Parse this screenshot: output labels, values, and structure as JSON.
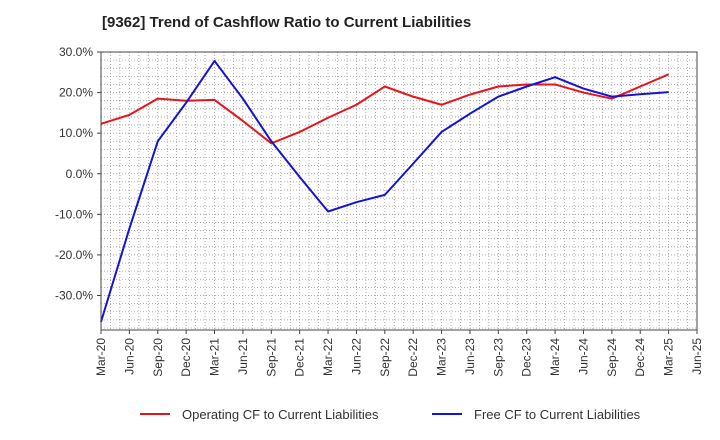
{
  "chart_data": {
    "type": "line",
    "title": "[9362]  Trend of Cashflow Ratio to Current Liabilities",
    "xlabel": "",
    "ylabel": "",
    "x": [
      "Mar-20",
      "Jun-20",
      "Sep-20",
      "Dec-20",
      "Mar-21",
      "Jun-21",
      "Sep-21",
      "Dec-21",
      "Mar-22",
      "Jun-22",
      "Sep-22",
      "Dec-22",
      "Mar-23",
      "Jun-23",
      "Sep-23",
      "Dec-23",
      "Mar-24",
      "Jun-24",
      "Sep-24",
      "Dec-24",
      "Mar-25",
      "Jun-25"
    ],
    "ylim": [
      -38.5,
      30
    ],
    "yticks": [
      30,
      20,
      10,
      0,
      -10,
      -20,
      -30
    ],
    "ytick_labels": [
      "30.0%",
      "20.0%",
      "10.0%",
      "0.0%",
      "-10.0%",
      "-20.0%",
      "-30.0%"
    ],
    "grid": true,
    "legend_position": "bottom",
    "series": [
      {
        "name": "Operating CF to Current Liabilities",
        "color": "#e8141b",
        "values": [
          12.3,
          14.5,
          18.5,
          18.0,
          18.2,
          13.0,
          7.5,
          10.3,
          13.8,
          17.0,
          21.5,
          19.0,
          17.0,
          19.5,
          21.5,
          22.0,
          22.0,
          20.0,
          18.5,
          21.5,
          24.5,
          null
        ]
      },
      {
        "name": "Free CF to Current Liabilities",
        "color": "#1414d2",
        "values": [
          -36.5,
          -13.5,
          8.0,
          17.5,
          27.8,
          18.5,
          8.0,
          -0.8,
          -9.3,
          -7.0,
          -5.2,
          2.5,
          10.3,
          14.8,
          19.0,
          21.5,
          23.8,
          21.0,
          19.0,
          19.6,
          20.1,
          null
        ]
      }
    ]
  }
}
